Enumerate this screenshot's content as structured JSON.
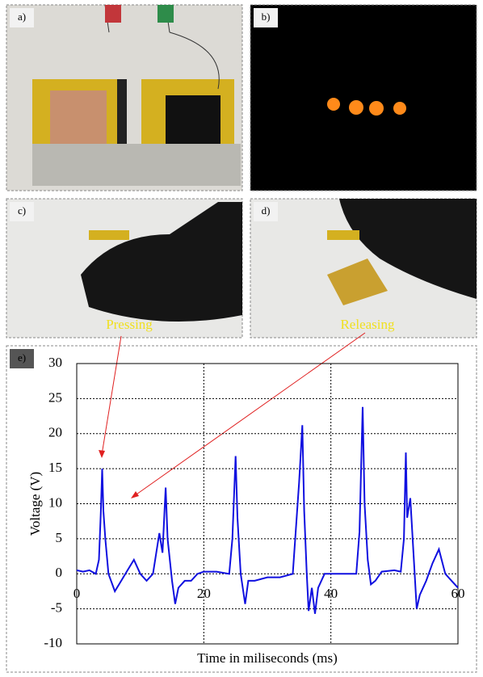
{
  "figure": {
    "panel_labels": [
      "a)",
      "b)",
      "c)",
      "d)"
    ],
    "annotations": [
      "Pressing",
      "Releasing"
    ]
  },
  "chart_data": {
    "type": "line",
    "panel_label": "e)",
    "y_label": "Voltage (V)",
    "x_label": "Time in miliseconds (ms)",
    "color": "#1010e0",
    "grid": true,
    "xlim": [
      0,
      60
    ],
    "ylim": [
      -10,
      30
    ],
    "xticks": [
      0,
      20,
      40,
      60
    ],
    "yticks": [
      -10,
      -5,
      0,
      5,
      10,
      15,
      20,
      25,
      30
    ],
    "x": [
      0,
      1,
      2,
      3,
      3.5,
      3.8,
      4,
      4.2,
      4.5,
      5,
      6,
      7,
      8,
      9,
      10,
      11,
      12,
      13,
      13.5,
      14,
      14.3,
      15,
      15.5,
      16,
      17,
      18,
      19,
      20,
      22,
      24,
      24.5,
      25,
      25.3,
      25.8,
      26.5,
      27,
      28,
      30,
      32,
      34,
      35,
      35.5,
      35.8,
      36.2,
      36.5,
      37,
      37.5,
      38,
      39,
      42,
      44,
      44.5,
      45,
      45.3,
      45.8,
      46.3,
      47,
      48,
      50,
      51,
      51.5,
      51.8,
      52,
      52.5,
      53,
      53.5,
      54,
      55,
      56,
      57,
      58,
      59,
      60
    ],
    "values": [
      0.5,
      0.3,
      0.5,
      0,
      2,
      9,
      15,
      9,
      5,
      0,
      -2.5,
      -1,
      0.5,
      2,
      0,
      -1,
      0,
      5.8,
      3,
      12.3,
      5,
      -1,
      -4.3,
      -2,
      -1,
      -1,
      0,
      0.3,
      0.3,
      0,
      5,
      16.8,
      8,
      0,
      -4.3,
      -1,
      -1,
      -0.5,
      -0.5,
      0,
      13,
      21.2,
      9,
      0,
      -5.3,
      -2,
      -5.7,
      -2,
      0,
      0,
      0,
      6,
      23.8,
      10,
      2,
      -1.5,
      -1,
      0.3,
      0.5,
      0.3,
      5,
      17.3,
      8,
      10.8,
      3,
      -5,
      -3,
      -1,
      1.5,
      3.5,
      0,
      -1,
      -2
    ]
  }
}
